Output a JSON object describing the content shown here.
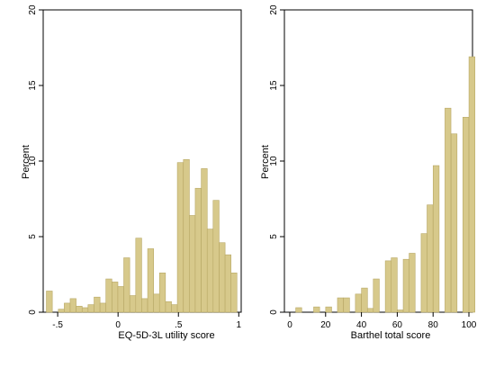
{
  "chart_data": [
    {
      "type": "bar",
      "subtype": "histogram",
      "xlabel": "EQ-5D-3L utility score",
      "ylabel": "Percent",
      "xlim": [
        -0.62,
        1.02
      ],
      "ylim": [
        0,
        20
      ],
      "xticks": [
        -0.5,
        0,
        0.5,
        1
      ],
      "xtick_labels": [
        "-.5",
        "0",
        ".5",
        "1"
      ],
      "yticks": [
        0,
        5,
        10,
        15,
        20
      ],
      "ytick_labels": [
        "0",
        "5",
        "10",
        "15",
        "20"
      ],
      "bar_color": "#d7c98b",
      "bar_edge_color": "#b8a865",
      "grid": false,
      "legend": "none",
      "bin_width": 0.0493,
      "bins": [
        {
          "x": -0.569,
          "y": 1.4
        },
        {
          "x": -0.52,
          "y": 0.0
        },
        {
          "x": -0.47,
          "y": 0.2
        },
        {
          "x": -0.421,
          "y": 0.6
        },
        {
          "x": -0.372,
          "y": 0.9
        },
        {
          "x": -0.322,
          "y": 0.4
        },
        {
          "x": -0.273,
          "y": 0.3
        },
        {
          "x": -0.224,
          "y": 0.5
        },
        {
          "x": -0.174,
          "y": 1.0
        },
        {
          "x": -0.125,
          "y": 0.6
        },
        {
          "x": -0.076,
          "y": 2.2
        },
        {
          "x": -0.026,
          "y": 2.0
        },
        {
          "x": 0.023,
          "y": 1.7
        },
        {
          "x": 0.072,
          "y": 3.6
        },
        {
          "x": 0.122,
          "y": 1.1
        },
        {
          "x": 0.171,
          "y": 4.9
        },
        {
          "x": 0.22,
          "y": 0.9
        },
        {
          "x": 0.27,
          "y": 4.2
        },
        {
          "x": 0.319,
          "y": 1.2
        },
        {
          "x": 0.368,
          "y": 2.6
        },
        {
          "x": 0.418,
          "y": 0.7
        },
        {
          "x": 0.467,
          "y": 0.5
        },
        {
          "x": 0.516,
          "y": 9.9
        },
        {
          "x": 0.566,
          "y": 10.1
        },
        {
          "x": 0.615,
          "y": 6.4
        },
        {
          "x": 0.664,
          "y": 8.2
        },
        {
          "x": 0.714,
          "y": 9.5
        },
        {
          "x": 0.763,
          "y": 5.5
        },
        {
          "x": 0.812,
          "y": 7.4
        },
        {
          "x": 0.862,
          "y": 4.6
        },
        {
          "x": 0.911,
          "y": 3.8
        },
        {
          "x": 0.96,
          "y": 2.6
        }
      ]
    },
    {
      "type": "bar",
      "subtype": "histogram",
      "xlabel": "Barthel total score",
      "ylabel": "Percent",
      "xlim": [
        -3,
        102
      ],
      "ylim": [
        0,
        20
      ],
      "xticks": [
        0,
        20,
        40,
        60,
        80,
        100
      ],
      "xtick_labels": [
        "0",
        "20",
        "40",
        "60",
        "80",
        "100"
      ],
      "yticks": [
        0,
        5,
        10,
        15,
        20
      ],
      "ytick_labels": [
        "0",
        "5",
        "10",
        "15",
        "20"
      ],
      "bar_color": "#d7c98b",
      "bar_edge_color": "#b8a865",
      "grid": false,
      "legend": "none",
      "bin_width": 3.333,
      "bins": [
        {
          "x": 5.0,
          "y": 0.3
        },
        {
          "x": 15.0,
          "y": 0.35
        },
        {
          "x": 21.7,
          "y": 0.35
        },
        {
          "x": 28.3,
          "y": 0.95
        },
        {
          "x": 31.7,
          "y": 0.95
        },
        {
          "x": 38.3,
          "y": 1.2
        },
        {
          "x": 41.7,
          "y": 1.6
        },
        {
          "x": 45.0,
          "y": 0.25
        },
        {
          "x": 48.3,
          "y": 2.2
        },
        {
          "x": 55.0,
          "y": 3.4
        },
        {
          "x": 58.3,
          "y": 3.6
        },
        {
          "x": 61.7,
          "y": 0.15
        },
        {
          "x": 65.0,
          "y": 3.5
        },
        {
          "x": 68.3,
          "y": 3.9
        },
        {
          "x": 75.0,
          "y": 5.2
        },
        {
          "x": 78.3,
          "y": 7.1
        },
        {
          "x": 81.7,
          "y": 9.7
        },
        {
          "x": 88.3,
          "y": 13.5
        },
        {
          "x": 91.7,
          "y": 11.8
        },
        {
          "x": 98.3,
          "y": 12.9
        },
        {
          "x": 101.7,
          "y": 16.9
        }
      ]
    }
  ]
}
